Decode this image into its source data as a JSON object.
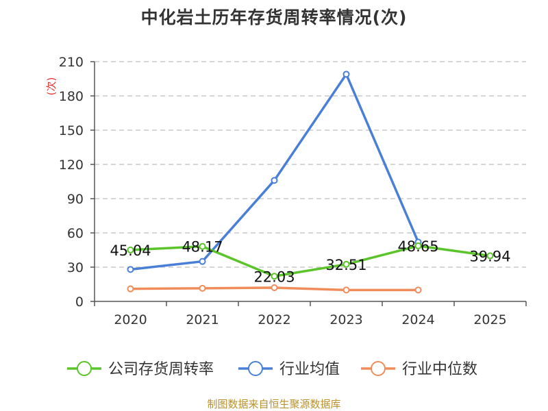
{
  "title": "中化岩土历年存货周转率情况(次)",
  "source": "制图数据来自恒生聚源数据库",
  "chart_data": {
    "type": "line",
    "ylabel": "(次)",
    "ylim": [
      0,
      210
    ],
    "yticks": [
      0,
      30,
      60,
      90,
      120,
      150,
      180,
      210
    ],
    "categories": [
      "2020",
      "2021",
      "2022",
      "2023",
      "2024",
      "2025"
    ],
    "grid": true,
    "legend_position": "bottom",
    "series": [
      {
        "name": "公司存货周转率",
        "color": "#5bc42a",
        "values": [
          45.04,
          48.17,
          22.03,
          32.51,
          48.65,
          39.94
        ],
        "labels": [
          "45.04",
          "48.17",
          "22.03",
          "32.51",
          "48.65",
          "39.94"
        ]
      },
      {
        "name": "行业均值",
        "color": "#4a7fd8",
        "values": [
          28,
          35,
          106,
          199,
          52,
          null
        ]
      },
      {
        "name": "行业中位数",
        "color": "#f08c5a",
        "values": [
          11,
          11.5,
          12,
          10,
          10,
          null
        ]
      }
    ]
  }
}
